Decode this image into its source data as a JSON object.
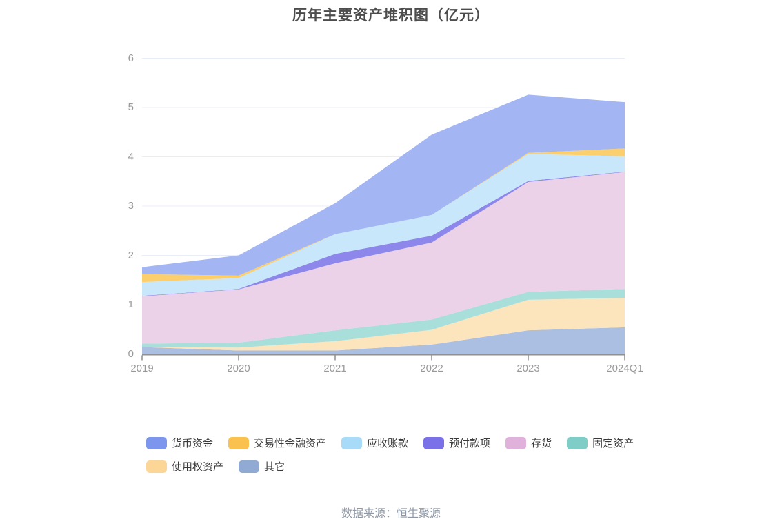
{
  "title": "历年主要资产堆积图（亿元）",
  "footer": {
    "source_label": "数据来源：恒生聚源"
  },
  "chart_data": {
    "type": "area",
    "stacked": true,
    "title": "历年主要资产堆积图（亿元）",
    "xlabel": "",
    "ylabel": "",
    "unit": "亿元",
    "x": [
      "2019",
      "2020",
      "2021",
      "2022",
      "2023",
      "2024Q1"
    ],
    "ylim": [
      0,
      6
    ],
    "yticks": [
      0,
      1,
      2,
      3,
      4,
      5,
      6
    ],
    "grid": true,
    "legend_position": "bottom",
    "series": [
      {
        "name": "货币资金",
        "color": "#7C96EE",
        "fill": "#A3B6F3",
        "values": [
          0.14,
          0.41,
          0.63,
          1.63,
          1.18,
          0.94
        ]
      },
      {
        "name": "交易性金融资产",
        "color": "#FBC14E",
        "fill": "#FBCF6E",
        "values": [
          0.16,
          0.05,
          0.0,
          0.0,
          0.02,
          0.16
        ]
      },
      {
        "name": "应收账款",
        "color": "#A8DBF7",
        "fill": "#C8E7FA",
        "values": [
          0.28,
          0.22,
          0.4,
          0.42,
          0.55,
          0.31
        ]
      },
      {
        "name": "预付款项",
        "color": "#7A70E8",
        "fill": "#8D87EB",
        "values": [
          0.01,
          0.01,
          0.19,
          0.14,
          0.02,
          0.01
        ]
      },
      {
        "name": "存货",
        "color": "#E0B1DB",
        "fill": "#EBD2E8",
        "values": [
          0.96,
          1.08,
          1.36,
          1.56,
          2.23,
          2.37
        ]
      },
      {
        "name": "固定资产",
        "color": "#7ECDC7",
        "fill": "#A9DFDB",
        "values": [
          0.07,
          0.1,
          0.22,
          0.21,
          0.16,
          0.18
        ]
      },
      {
        "name": "使用权资产",
        "color": "#FBD697",
        "fill": "#FCE5BD",
        "values": [
          0.0,
          0.06,
          0.19,
          0.3,
          0.62,
          0.6
        ]
      },
      {
        "name": "其它",
        "color": "#90AAD4",
        "fill": "#AABFE1",
        "values": [
          0.14,
          0.07,
          0.07,
          0.19,
          0.48,
          0.54
        ]
      }
    ],
    "stack_order_bottom_to_top": [
      "其它",
      "使用权资产",
      "固定资产",
      "存货",
      "预付款项",
      "应收账款",
      "交易性金融资产",
      "货币资金"
    ],
    "totals": [
      1.76,
      2.0,
      3.06,
      4.45,
      5.26,
      5.11
    ]
  },
  "layout_colors": {
    "gridline": "#E9EDF7",
    "axis_line": "#8f8f8f",
    "tick_label": "#999999",
    "title_text": "#4c4c4c"
  }
}
